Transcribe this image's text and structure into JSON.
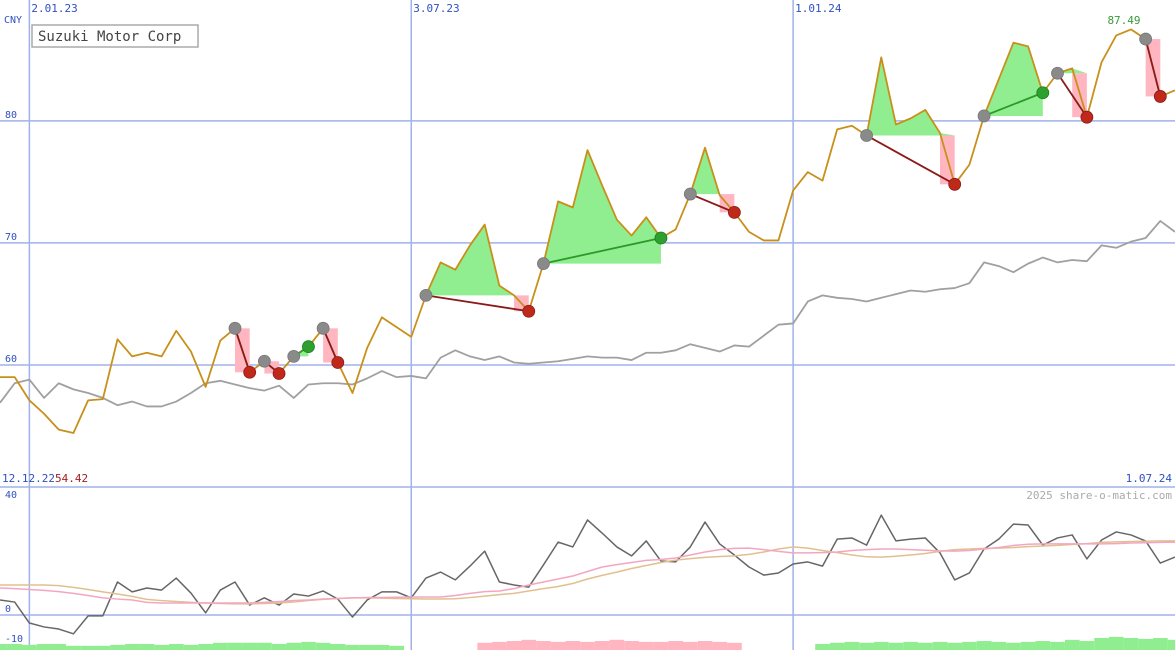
{
  "chart_data": [
    {
      "type": "line",
      "title": "Suzuki Motor Corp",
      "currency": "CNY",
      "watermark": "2025 share-o-matic.com",
      "xlim": [
        0,
        80
      ],
      "xticks": [
        {
          "value": 2,
          "label": "2.01.23"
        },
        {
          "value": 28,
          "label": "3.07.23"
        },
        {
          "value": 54,
          "label": "1.01.24"
        }
      ],
      "x_start_label": "12.12.22",
      "x_end_label": "1.07.24",
      "low": 54.42,
      "high": 87.49,
      "ylim": [
        50,
        89.9
      ],
      "yticks": [
        60,
        70,
        80
      ],
      "grid": true,
      "series": [
        {
          "color": "#c8901a",
          "values": [
            59.0,
            59.0,
            57.1,
            56.0,
            54.7,
            54.42,
            57.1,
            57.2,
            62.1,
            60.7,
            61.0,
            60.7,
            62.8,
            61.1,
            58.2,
            62.0,
            63.0,
            59.4,
            60.3,
            59.3,
            60.7,
            61.5,
            63.0,
            60.2,
            57.7,
            61.4,
            63.9,
            63.1,
            62.3,
            65.7,
            68.4,
            67.8,
            69.8,
            71.5,
            66.5,
            65.7,
            64.4,
            68.3,
            73.4,
            72.9,
            77.6,
            74.7,
            71.9,
            70.6,
            72.1,
            70.4,
            71.1,
            74.0,
            77.8,
            73.9,
            72.5,
            70.9,
            70.2,
            70.2,
            74.3,
            75.8,
            75.1,
            79.3,
            79.6,
            78.8,
            85.2,
            79.7,
            80.2,
            80.9,
            79.0,
            74.8,
            76.4,
            80.4,
            83.4,
            86.4,
            86.1,
            82.3,
            83.9,
            84.3,
            80.3,
            84.8,
            87.0,
            87.49,
            86.7,
            82.0,
            82.5
          ]
        },
        {
          "color": "#a0a0a0",
          "values": [
            56.9,
            58.5,
            58.8,
            57.3,
            58.5,
            58.0,
            57.7,
            57.3,
            56.7,
            57.0,
            56.6,
            56.6,
            57.0,
            57.7,
            58.5,
            58.7,
            58.4,
            58.1,
            57.9,
            58.3,
            57.3,
            58.4,
            58.5,
            58.5,
            58.4,
            58.9,
            59.5,
            59.0,
            59.1,
            58.9,
            60.6,
            61.2,
            60.7,
            60.4,
            60.7,
            60.2,
            60.1,
            60.2,
            60.3,
            60.5,
            60.7,
            60.6,
            60.6,
            60.4,
            61.0,
            61.0,
            61.2,
            61.7,
            61.4,
            61.1,
            61.6,
            61.5,
            62.4,
            63.3,
            63.4,
            65.2,
            65.7,
            65.5,
            65.4,
            65.2,
            65.5,
            65.8,
            66.1,
            66.0,
            66.2,
            66.3,
            66.7,
            68.4,
            68.1,
            67.6,
            68.3,
            68.8,
            68.4,
            68.6,
            68.5,
            69.8,
            69.6,
            70.1,
            70.4,
            71.8,
            70.9
          ]
        }
      ],
      "trades": [
        {
          "from": 16,
          "to": 17
        },
        {
          "from": 18,
          "to": 19
        },
        {
          "from": 20,
          "to": 21
        },
        {
          "from": 22,
          "to": 23
        },
        {
          "from": 29,
          "to": 36
        },
        {
          "from": 37,
          "to": 45
        },
        {
          "from": 47,
          "to": 50
        },
        {
          "from": 59,
          "to": 65
        },
        {
          "from": 67,
          "to": 71
        },
        {
          "from": 72,
          "to": 74
        },
        {
          "from": 78,
          "to": 79
        }
      ],
      "trade_colors": {
        "gain_fill": "#90ee90",
        "loss_fill": "#ffb6c1",
        "gain_line": "#2a9a2a",
        "loss_line": "#8b1a1a",
        "entry": "#8a8a8a",
        "gain_dot": "#2ea02e",
        "loss_dot": "#c0291a"
      }
    },
    {
      "type": "line",
      "ylim": [
        -11.7,
        42.7
      ],
      "yticks": [
        -10,
        0,
        40
      ],
      "grid": true,
      "series": [
        {
          "color": "#f4a6c0",
          "values": [
            9,
            8.8,
            8.5,
            8.2,
            7.8,
            7.2,
            6.5,
            5.7,
            5.3,
            5,
            4.2,
            4,
            4,
            4,
            4,
            4,
            4,
            4,
            4.2,
            4.5,
            4.8,
            5,
            5.3,
            5.5,
            5.7,
            5.8,
            5.8,
            5.9,
            6,
            6,
            6,
            6.5,
            7.2,
            7.8,
            8,
            8.8,
            10,
            11,
            12,
            13,
            14.5,
            16,
            16.8,
            17.5,
            18.2,
            18.5,
            19,
            20,
            21,
            21.8,
            22.2,
            22.3,
            21.8,
            21.2,
            20.7,
            20.7,
            20.8,
            21,
            21.5,
            21.8,
            22,
            22,
            21.8,
            21.6,
            21.4,
            21.3,
            21.5,
            22,
            22.5,
            23.2,
            23.6,
            23.7,
            23.7,
            23.7,
            23.7,
            23.7,
            23.8,
            24,
            24.1,
            24.2,
            24.3
          ]
        },
        {
          "color": "#e0c090",
          "values": [
            10,
            10,
            10,
            10,
            9.8,
            9.2,
            8.5,
            7.7,
            7,
            6.2,
            5.2,
            4.8,
            4.5,
            4.2,
            4,
            3.8,
            3.7,
            3.7,
            3.8,
            4,
            4.3,
            4.8,
            5.2,
            5.5,
            5.7,
            5.7,
            5.6,
            5.5,
            5.4,
            5.3,
            5.3,
            5.4,
            5.8,
            6.3,
            6.8,
            7.2,
            8,
            8.8,
            9.5,
            10.5,
            12,
            13.2,
            14.3,
            15.5,
            16.5,
            17.5,
            18.3,
            18.8,
            19.2,
            19.5,
            19.7,
            20.2,
            21,
            22,
            22.7,
            22.3,
            21.5,
            20.8,
            20,
            19.4,
            19.3,
            19.6,
            20,
            20.5,
            21.2,
            21.8,
            22,
            22.2,
            22.3,
            22.5,
            22.8,
            23,
            23.2,
            23.5,
            23.8,
            24.2,
            24.4,
            24.5,
            24.6,
            24.7,
            24.7
          ]
        },
        {
          "color": "#666666",
          "values": [
            5,
            4.3,
            -2.7,
            -4,
            -4.7,
            -6.3,
            -0.3,
            -0.3,
            11,
            7.7,
            9,
            8.3,
            12.3,
            7.3,
            0.7,
            8.3,
            11,
            3.3,
            5.7,
            3.3,
            7,
            6.3,
            8,
            5.3,
            -0.7,
            5,
            7.7,
            7.7,
            5.7,
            12.3,
            14.3,
            11.7,
            16.3,
            21.3,
            11,
            10,
            9.3,
            16.7,
            24.3,
            22.7,
            31.7,
            27.3,
            22.7,
            19.7,
            24.7,
            18,
            17.7,
            22.7,
            31,
            23.7,
            20,
            16,
            13.3,
            14,
            17,
            17.7,
            16.3,
            25.3,
            25.7,
            23.3,
            33.3,
            24.7,
            25.3,
            25.7,
            20.7,
            11.7,
            14,
            22,
            25.3,
            30.3,
            30,
            23.3,
            25.7,
            26.7,
            18.7,
            25,
            27.7,
            26.7,
            24.7,
            17.3,
            19.3
          ]
        }
      ],
      "bars": {
        "values": [
          -9.7,
          -9.7,
          -10,
          -9.7,
          -9.7,
          -10.3,
          -10.3,
          -10.3,
          -10,
          -9.7,
          -9.7,
          -10,
          -9.7,
          -10,
          -9.7,
          -9.3,
          -9.3,
          -9.3,
          -9.3,
          -9.7,
          -9.3,
          -9,
          -9.3,
          -9.7,
          -10,
          -10,
          -10,
          -10.3,
          null,
          null,
          null,
          null,
          null,
          -9.3,
          -9,
          -8.7,
          -8.3,
          -8.7,
          -9,
          -8.7,
          -9,
          -8.7,
          -8.3,
          -8.7,
          -9,
          -9,
          -8.7,
          -9,
          -8.7,
          -9,
          -9.3,
          null,
          null,
          null,
          null,
          null,
          -9.7,
          -9.3,
          -9,
          -9.3,
          -9,
          -9.3,
          -9,
          -9.3,
          -9,
          -9.3,
          -9,
          -8.7,
          -9,
          -9.3,
          -9,
          -8.7,
          -9,
          -8.3,
          -8.7,
          -7.7,
          -7.3,
          -7.7,
          -8,
          -7.7,
          -8.3
        ],
        "colors": [
          "#90ee90",
          "#90ee90",
          "#90ee90",
          "#90ee90",
          "#90ee90",
          "#90ee90",
          "#90ee90",
          "#90ee90",
          "#90ee90",
          "#90ee90",
          "#90ee90",
          "#90ee90",
          "#90ee90",
          "#90ee90",
          "#90ee90",
          "#90ee90",
          "#90ee90",
          "#90ee90",
          "#90ee90",
          "#90ee90",
          "#90ee90",
          "#90ee90",
          "#90ee90",
          "#90ee90",
          "#90ee90",
          "#90ee90",
          "#90ee90",
          "#90ee90",
          null,
          null,
          null,
          null,
          null,
          "#ffb6c1",
          "#ffb6c1",
          "#ffb6c1",
          "#ffb6c1",
          "#ffb6c1",
          "#ffb6c1",
          "#ffb6c1",
          "#ffb6c1",
          "#ffb6c1",
          "#ffb6c1",
          "#ffb6c1",
          "#ffb6c1",
          "#ffb6c1",
          "#ffb6c1",
          "#ffb6c1",
          "#ffb6c1",
          "#ffb6c1",
          "#ffb6c1",
          null,
          null,
          null,
          null,
          null,
          "#90ee90",
          "#90ee90",
          "#90ee90",
          "#90ee90",
          "#90ee90",
          "#90ee90",
          "#90ee90",
          "#90ee90",
          "#90ee90",
          "#90ee90",
          "#90ee90",
          "#90ee90",
          "#90ee90",
          "#90ee90",
          "#90ee90",
          "#90ee90",
          "#90ee90",
          "#90ee90",
          "#90ee90",
          "#90ee90",
          "#90ee90",
          "#90ee90",
          "#90ee90",
          "#90ee90",
          "#90ee90"
        ]
      }
    }
  ]
}
